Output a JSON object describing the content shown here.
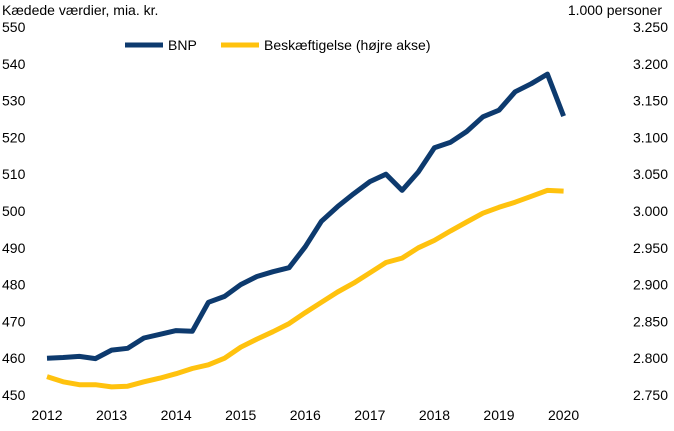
{
  "chart_data": {
    "type": "line",
    "left_axis_label": "Kædede værdier, mia. kr.",
    "right_axis_label": "1.000 personer",
    "x_ticks": [
      "2012",
      "2013",
      "2014",
      "2015",
      "2016",
      "2017",
      "2018",
      "2019",
      "2020"
    ],
    "x_range": [
      2012.0,
      2020.75
    ],
    "y_left": {
      "min": 450,
      "max": 550,
      "ticks": [
        "450",
        "460",
        "470",
        "480",
        "490",
        "500",
        "510",
        "520",
        "530",
        "540",
        "550"
      ]
    },
    "y_right": {
      "min": 2750,
      "max": 3250,
      "ticks": [
        "2.750",
        "2.800",
        "2.850",
        "2.900",
        "2.950",
        "3.000",
        "3.050",
        "3.100",
        "3.150",
        "3.200",
        "3.250"
      ]
    },
    "legend_position": "top",
    "series": [
      {
        "name": "BNP",
        "axis": "left",
        "color": "#0d3a6e",
        "points": [
          [
            2012.0,
            460.0
          ],
          [
            2012.25,
            460.2
          ],
          [
            2012.5,
            460.5
          ],
          [
            2012.75,
            459.9
          ],
          [
            2013.0,
            462.2
          ],
          [
            2013.25,
            462.7
          ],
          [
            2013.5,
            465.5
          ],
          [
            2013.75,
            466.5
          ],
          [
            2014.0,
            467.5
          ],
          [
            2014.25,
            467.3
          ],
          [
            2014.5,
            475.2
          ],
          [
            2014.75,
            476.8
          ],
          [
            2015.0,
            480.0
          ],
          [
            2015.25,
            482.2
          ],
          [
            2015.5,
            483.5
          ],
          [
            2015.75,
            484.6
          ],
          [
            2016.0,
            490.3
          ],
          [
            2016.25,
            497.2
          ],
          [
            2016.5,
            501.2
          ],
          [
            2016.75,
            504.7
          ],
          [
            2017.0,
            508.0
          ],
          [
            2017.25,
            510.0
          ],
          [
            2017.5,
            505.6
          ],
          [
            2017.75,
            510.6
          ],
          [
            2018.0,
            517.2
          ],
          [
            2018.25,
            518.7
          ],
          [
            2018.5,
            521.6
          ],
          [
            2018.75,
            525.6
          ],
          [
            2019.0,
            527.4
          ],
          [
            2019.25,
            532.4
          ],
          [
            2019.5,
            534.6
          ],
          [
            2019.75,
            537.2
          ],
          [
            2020.0,
            525.8
          ]
        ]
      },
      {
        "name": "Beskæftigelse (højre akse)",
        "axis": "right",
        "color": "#ffc20e",
        "points": [
          [
            2012.0,
            2775
          ],
          [
            2012.25,
            2768
          ],
          [
            2012.5,
            2764
          ],
          [
            2012.75,
            2764
          ],
          [
            2013.0,
            2761
          ],
          [
            2013.25,
            2762
          ],
          [
            2013.5,
            2768
          ],
          [
            2013.75,
            2773
          ],
          [
            2014.0,
            2779
          ],
          [
            2014.25,
            2786
          ],
          [
            2014.5,
            2791
          ],
          [
            2014.75,
            2800
          ],
          [
            2015.0,
            2815
          ],
          [
            2015.25,
            2826
          ],
          [
            2015.5,
            2836
          ],
          [
            2015.75,
            2847
          ],
          [
            2016.0,
            2862
          ],
          [
            2016.25,
            2876
          ],
          [
            2016.5,
            2890
          ],
          [
            2016.75,
            2902
          ],
          [
            2017.0,
            2916
          ],
          [
            2017.25,
            2930
          ],
          [
            2017.5,
            2936
          ],
          [
            2017.75,
            2950
          ],
          [
            2018.0,
            2960
          ],
          [
            2018.25,
            2973
          ],
          [
            2018.5,
            2985
          ],
          [
            2018.75,
            2997
          ],
          [
            2019.0,
            3005
          ],
          [
            2019.25,
            3012
          ],
          [
            2019.5,
            3020
          ],
          [
            2019.75,
            3028
          ],
          [
            2020.0,
            3027
          ]
        ]
      }
    ]
  }
}
